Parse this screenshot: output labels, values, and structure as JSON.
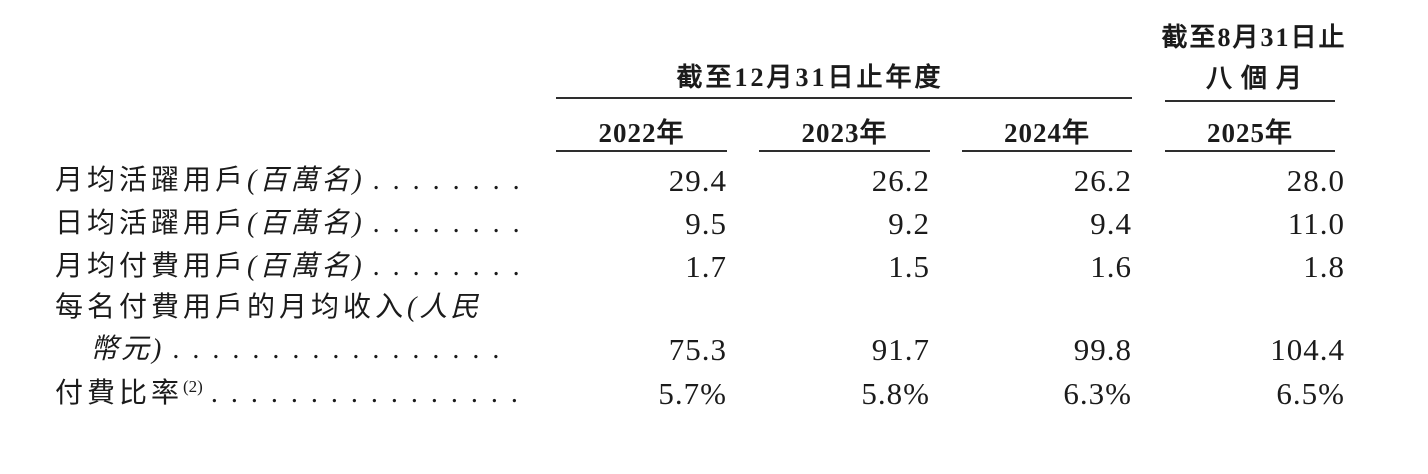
{
  "document": {
    "header": {
      "annual_group_title": "截至12月31日止年度",
      "interim_group_title_line1": "截至8月31日止",
      "interim_group_title_line2": "八個月",
      "column_years": [
        "2022年",
        "2023年",
        "2024年",
        "2025年"
      ]
    },
    "rows": [
      {
        "label": "月均活躍用戶",
        "unit": "(百萬名)",
        "dots": "........",
        "values": [
          "29.4",
          "26.2",
          "26.2",
          "28.0"
        ]
      },
      {
        "label": "日均活躍用戶",
        "unit": "(百萬名)",
        "dots": "........",
        "values": [
          "9.5",
          "9.2",
          "9.4",
          "11.0"
        ]
      },
      {
        "label": "月均付費用戶",
        "unit": "(百萬名)",
        "dots": "........",
        "values": [
          "1.7",
          "1.5",
          "1.6",
          "1.8"
        ]
      },
      {
        "label": "每名付費用戶的月均收入",
        "unit": "(人民",
        "unit_line2": "幣元)",
        "two_line": true,
        "dots": ".................",
        "values": [
          "75.3",
          "91.7",
          "99.8",
          "104.4"
        ]
      },
      {
        "label": "付費比率",
        "footnote": "(2)",
        "dots": "..................",
        "values": [
          "5.7%",
          "5.8%",
          "6.3%",
          "6.5%"
        ]
      }
    ],
    "colors": {
      "text": "#1b1b1b",
      "rule": "#2e2e2e",
      "background": "#ffffff"
    }
  }
}
